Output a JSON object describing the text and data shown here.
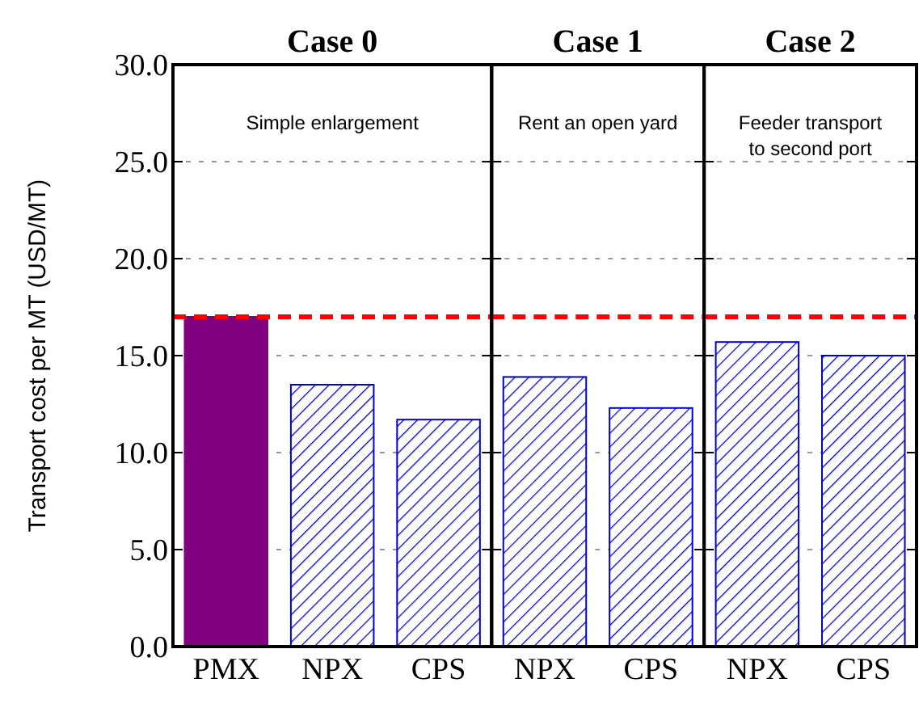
{
  "chart_data": [
    {
      "type": "bar",
      "title": "Case 0",
      "ylabel": "Transport cost per MT (USD/MT)",
      "categories": [
        "PMX",
        "NPX",
        "CPS"
      ],
      "values": [
        17.0,
        13.5,
        11.7
      ],
      "colors": [
        "#800080",
        "#0000cc",
        "#0000cc"
      ],
      "ylim": [
        0,
        30
      ],
      "yticks": [
        {
          "value": 0,
          "label": "0.0"
        },
        {
          "value": 5,
          "label": "5.0"
        },
        {
          "value": 10,
          "label": "10.0"
        },
        {
          "value": 15,
          "label": "15.0"
        },
        {
          "value": 20,
          "label": "20.0"
        },
        {
          "value": 25,
          "label": "25.0"
        },
        {
          "value": 30,
          "label": "30.0"
        }
      ],
      "grid": "y",
      "annotations": [
        "Simple enlargement"
      ],
      "ref_lines": [
        {
          "axis": "y",
          "value": 17,
          "color": "#ff0000",
          "line_style": "dashed"
        }
      ]
    },
    {
      "type": "bar",
      "title": "Case 1",
      "categories": [
        "NPX",
        "CPS"
      ],
      "values": [
        13.9,
        12.3
      ],
      "colors": [
        "#0000cc",
        "#0000cc"
      ],
      "ylim": [
        0,
        30
      ],
      "yticks": [
        {
          "value": 0,
          "label": null
        },
        {
          "value": 5,
          "label": null
        },
        {
          "value": 10,
          "label": null
        },
        {
          "value": 15,
          "label": null
        },
        {
          "value": 20,
          "label": null
        },
        {
          "value": 25,
          "label": null
        },
        {
          "value": 30,
          "label": null
        }
      ],
      "tick_labels": "x",
      "grid": "y",
      "annotations": [
        "Rent an open yard"
      ],
      "ref_lines": [
        {
          "axis": "y",
          "value": 17,
          "color": "#ff0000",
          "line_style": "dashed"
        }
      ]
    },
    {
      "type": "bar",
      "title": "Case 2",
      "categories": [
        "NPX",
        "CPS"
      ],
      "values": [
        15.7,
        15.0
      ],
      "colors": [
        "#0000cc",
        "#0000cc"
      ],
      "ylim": [
        0,
        30
      ],
      "yticks": [
        {
          "value": 0,
          "label": null
        },
        {
          "value": 5,
          "label": null
        },
        {
          "value": 10,
          "label": null
        },
        {
          "value": 15,
          "label": null
        },
        {
          "value": 20,
          "label": null
        },
        {
          "value": 25,
          "label": null
        },
        {
          "value": 30,
          "label": null
        }
      ],
      "tick_labels": "x",
      "grid": "y",
      "annotations": [
        "Feeder transport to second port"
      ],
      "ref_lines": [
        {
          "axis": "y",
          "value": 17,
          "color": "#ff0000",
          "line_style": "dashed"
        }
      ]
    }
  ]
}
